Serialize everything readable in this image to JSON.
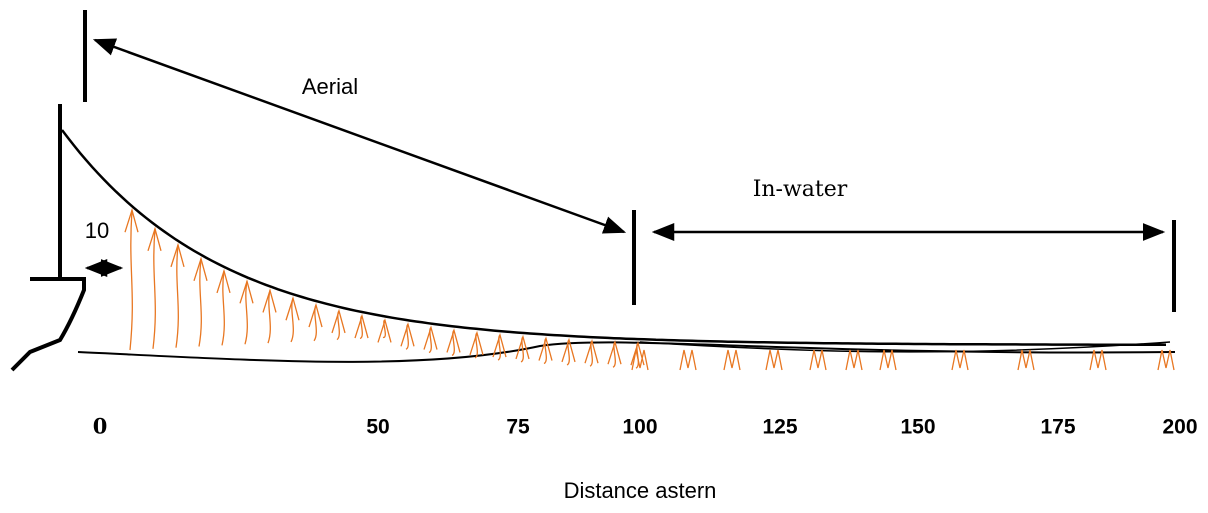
{
  "labels": {
    "aerial": "Aerial",
    "in_water": "In-water",
    "offset": "10",
    "x_axis": "Distance astern"
  },
  "ticks": [
    0,
    50,
    75,
    100,
    125,
    150,
    175,
    200
  ]
}
